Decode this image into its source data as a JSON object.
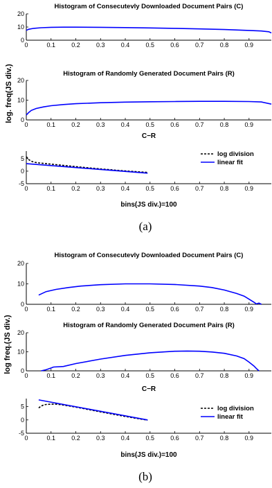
{
  "figure_a": {
    "caption": "(a)",
    "ylabel": "log. freq(JS div.)",
    "xlabel_hist": "C−R",
    "xlabel_fit": "bins(JS div.)=100"
  },
  "figure_b": {
    "caption": "(b)",
    "ylabel": "log freq.(JS div.)",
    "xlabel_hist": "C−R",
    "xlabel_fit": "bins(JS div.)=100"
  },
  "chart_data": [
    {
      "id": "a1",
      "type": "line",
      "title": "Histogram of Consecutevly Downloaded Document Pairs (C)",
      "xlim": [
        0,
        0.99
      ],
      "ylim": [
        0,
        20
      ],
      "xticks": [
        0,
        0.1,
        0.2,
        0.3,
        0.4,
        0.5,
        0.6,
        0.7,
        0.8,
        0.9
      ],
      "yticks": [
        0,
        10,
        20
      ],
      "series": [
        {
          "color": "#0000ff",
          "style": "solid",
          "x": [
            0.0,
            0.01,
            0.03,
            0.06,
            0.1,
            0.15,
            0.2,
            0.3,
            0.4,
            0.5,
            0.6,
            0.7,
            0.8,
            0.9,
            0.95,
            0.98,
            0.99
          ],
          "y": [
            7.5,
            8.3,
            9.0,
            9.5,
            9.8,
            9.9,
            9.9,
            9.8,
            9.6,
            9.3,
            9.0,
            8.6,
            8.1,
            7.4,
            7.0,
            6.4,
            5.5
          ]
        }
      ]
    },
    {
      "id": "a2",
      "type": "line",
      "title": "Histogram of Randomly Generated Document Pairs (R)",
      "xlim": [
        0,
        0.99
      ],
      "ylim": [
        0,
        20
      ],
      "xticks": [
        0,
        0.1,
        0.2,
        0.3,
        0.4,
        0.5,
        0.6,
        0.7,
        0.8,
        0.9
      ],
      "yticks": [
        0,
        10,
        20
      ],
      "series": [
        {
          "color": "#0000ff",
          "style": "solid",
          "x": [
            0.0,
            0.01,
            0.02,
            0.04,
            0.07,
            0.1,
            0.15,
            0.2,
            0.3,
            0.4,
            0.5,
            0.6,
            0.7,
            0.8,
            0.9,
            0.95,
            0.99
          ],
          "y": [
            2.5,
            3.8,
            4.8,
            5.8,
            6.6,
            7.2,
            7.8,
            8.2,
            8.7,
            9.0,
            9.2,
            9.3,
            9.4,
            9.4,
            9.3,
            9.1,
            8.0
          ]
        }
      ]
    },
    {
      "id": "a3",
      "type": "line",
      "xlim": [
        0,
        0.99
      ],
      "ylim": [
        -5,
        8
      ],
      "xticks": [
        0,
        0.1,
        0.2,
        0.3,
        0.4,
        0.5,
        0.6,
        0.7,
        0.8,
        0.9
      ],
      "yticks": [
        -5,
        0,
        5
      ],
      "legend": {
        "placement": "right",
        "entries": [
          "log division",
          "linear fit"
        ]
      },
      "series": [
        {
          "name": "log division",
          "color": "#000000",
          "style": "dashed",
          "x": [
            0.0,
            0.01,
            0.02,
            0.03,
            0.05,
            0.08,
            0.12,
            0.2,
            0.3,
            0.4,
            0.49
          ],
          "y": [
            5.8,
            4.6,
            4.0,
            3.6,
            3.3,
            3.0,
            2.6,
            1.8,
            0.9,
            0.1,
            -0.5
          ]
        },
        {
          "name": "linear fit",
          "color": "#0000ff",
          "style": "solid",
          "x": [
            0.0,
            0.49
          ],
          "y": [
            3.0,
            -0.8
          ]
        }
      ]
    },
    {
      "id": "b1",
      "type": "line",
      "title": "Histogram of Consecutevly Downloaded Document Pairs (C)",
      "xlim": [
        0,
        0.99
      ],
      "ylim": [
        0,
        20
      ],
      "xticks": [
        0,
        0.1,
        0.2,
        0.3,
        0.4,
        0.5,
        0.6,
        0.7,
        0.8,
        0.9
      ],
      "yticks": [
        0,
        10,
        20
      ],
      "series": [
        {
          "color": "#0000ff",
          "style": "solid",
          "x": [
            0.05,
            0.08,
            0.12,
            0.17,
            0.22,
            0.3,
            0.4,
            0.5,
            0.6,
            0.7,
            0.75,
            0.8,
            0.85,
            0.88,
            0.9,
            0.92,
            0.93,
            0.94,
            0.95
          ],
          "y": [
            4.5,
            6.2,
            7.3,
            8.2,
            8.9,
            9.6,
            10.0,
            10.0,
            9.7,
            8.9,
            8.2,
            7.0,
            5.3,
            4.0,
            2.5,
            1.0,
            0.2,
            0.6,
            0.0
          ]
        }
      ]
    },
    {
      "id": "b2",
      "type": "line",
      "title": "Histogram of Randomly Generated Document Pairs (R)",
      "xlim": [
        0,
        0.99
      ],
      "ylim": [
        0,
        20
      ],
      "xticks": [
        0,
        0.1,
        0.2,
        0.3,
        0.4,
        0.5,
        0.6,
        0.7,
        0.8,
        0.9
      ],
      "yticks": [
        0,
        10,
        20
      ],
      "series": [
        {
          "color": "#0000ff",
          "style": "solid",
          "x": [
            0.06,
            0.08,
            0.1,
            0.11,
            0.15,
            0.2,
            0.3,
            0.4,
            0.5,
            0.6,
            0.65,
            0.7,
            0.75,
            0.8,
            0.85,
            0.88,
            0.9,
            0.92,
            0.93,
            0.94
          ],
          "y": [
            0.0,
            0.6,
            1.5,
            2.0,
            2.3,
            3.8,
            6.2,
            8.1,
            9.5,
            10.3,
            10.4,
            10.3,
            9.9,
            9.2,
            7.8,
            6.4,
            4.6,
            2.5,
            1.2,
            0.0
          ]
        }
      ]
    },
    {
      "id": "b3",
      "type": "line",
      "xlim": [
        0,
        0.99
      ],
      "ylim": [
        -5,
        8
      ],
      "xticks": [
        0,
        0.1,
        0.2,
        0.3,
        0.4,
        0.5,
        0.6,
        0.7,
        0.8,
        0.9
      ],
      "yticks": [
        -5,
        0,
        5
      ],
      "legend": {
        "placement": "right",
        "entries": [
          "log division",
          "linear fit"
        ]
      },
      "series": [
        {
          "name": "log division",
          "color": "#000000",
          "style": "dashed",
          "x": [
            0.05,
            0.06,
            0.07,
            0.08,
            0.1,
            0.12,
            0.14,
            0.2,
            0.3,
            0.4,
            0.49
          ],
          "y": [
            4.5,
            5.2,
            5.6,
            5.8,
            5.9,
            5.9,
            5.7,
            4.8,
            3.0,
            1.3,
            -0.1
          ]
        },
        {
          "name": "linear fit",
          "color": "#0000ff",
          "style": "solid",
          "x": [
            0.05,
            0.49
          ],
          "y": [
            7.5,
            0.0
          ]
        }
      ]
    }
  ]
}
